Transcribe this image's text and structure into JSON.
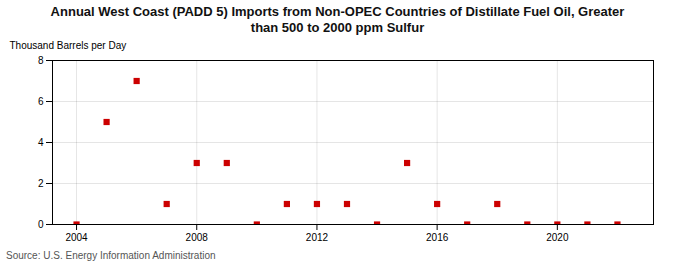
{
  "chart_data": {
    "type": "scatter",
    "title": "Annual West Coast (PADD 5) Imports from Non-OPEC Countries of Distillate Fuel Oil, Greater\nthan 500 to 2000 ppm Sulfur",
    "ylabel": "Thousand Barrels per Day",
    "source": "Source: U.S. Energy Information Administration",
    "x": [
      2004,
      2005,
      2006,
      2007,
      2008,
      2009,
      2010,
      2011,
      2012,
      2013,
      2014,
      2015,
      2016,
      2017,
      2018,
      2019,
      2020,
      2021,
      2022
    ],
    "values": [
      0,
      5,
      7,
      1,
      3,
      3,
      0,
      1,
      1,
      1,
      0,
      3,
      1,
      0,
      1,
      0,
      0,
      0,
      0
    ],
    "color": "#cc0000",
    "marker": "square",
    "xlim": [
      2003.2,
      2023.2
    ],
    "ylim": [
      0,
      8
    ],
    "xticks": [
      2004,
      2008,
      2012,
      2016,
      2020
    ],
    "yticks": [
      0,
      2,
      4,
      6,
      8
    ],
    "grid": true
  }
}
